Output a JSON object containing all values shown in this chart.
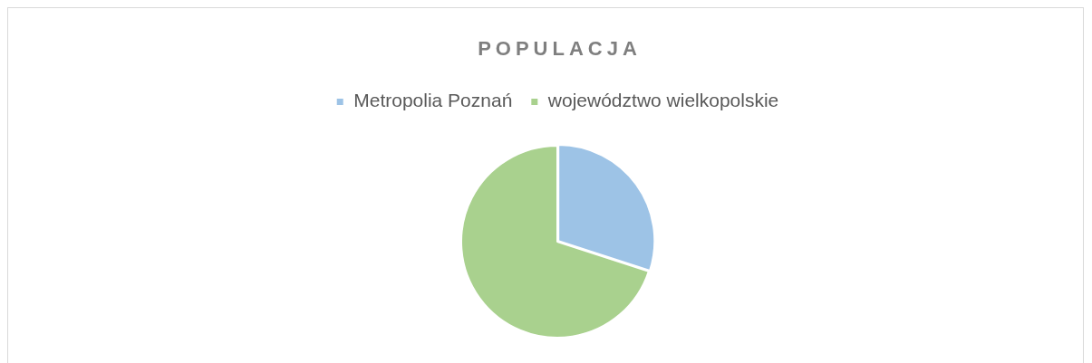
{
  "chart_data": {
    "type": "pie",
    "title": "POPULACJA",
    "categories": [
      "Metropolia Poznań",
      "województwo wielkopolskie"
    ],
    "values": [
      30,
      70
    ],
    "colors": [
      "#9dc3e6",
      "#a9d18e"
    ],
    "legend": "top"
  }
}
